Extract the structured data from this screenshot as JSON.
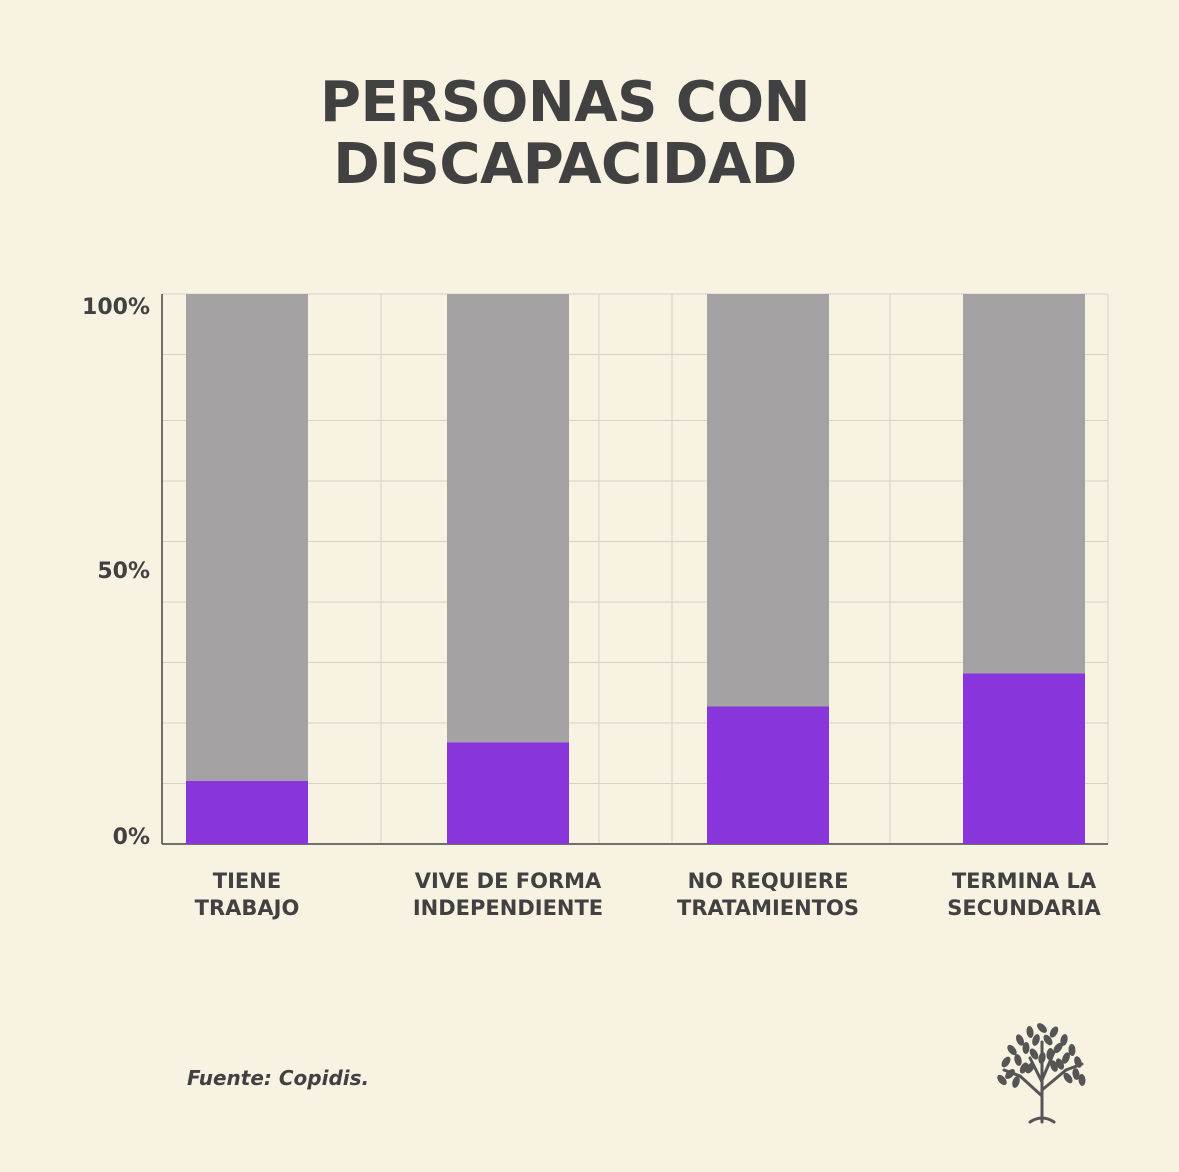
{
  "title_lines": [
    "PERSONAS CON",
    "DISCAPACIDAD"
  ],
  "source": "Fuente: Copidis.",
  "colors": {
    "background": "#f8f2e3",
    "highlight": "#8836db",
    "remainder": "#a5a2a3",
    "text": "#414141",
    "grid": "#d6d2c8"
  },
  "logo_icon": "tree-icon",
  "chart_data": {
    "type": "bar",
    "stacked": true,
    "title": "PERSONAS CON DISCAPACIDAD",
    "categories": [
      [
        "TIENE",
        "TRABAJO"
      ],
      [
        "VIVE DE FORMA",
        "INDEPENDIENTE"
      ],
      [
        "NO REQUIERE",
        "TRATAMIENTOS"
      ],
      [
        "TERMINA LA",
        "SECUNDARIA"
      ]
    ],
    "series": [
      {
        "values": [
          11.5,
          18.5,
          25,
          31
        ],
        "color": "#8836db"
      },
      {
        "values": [
          88.5,
          81.5,
          75,
          69
        ],
        "color": "#a5a2a3"
      }
    ],
    "yticks": [
      "0%",
      "50%",
      "100%"
    ],
    "ylim": [
      0,
      100
    ],
    "xlabel": "",
    "ylabel": "",
    "grid": true,
    "legend": "none"
  }
}
